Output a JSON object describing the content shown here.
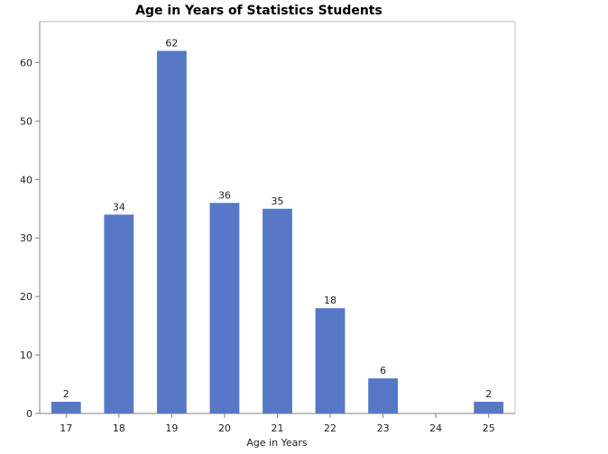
{
  "chart_data": {
    "type": "bar",
    "title": "Age in Years of Statistics Students",
    "xlabel": "Age in Years",
    "ylabel": "",
    "categories": [
      "17",
      "18",
      "19",
      "20",
      "21",
      "22",
      "23",
      "24",
      "25"
    ],
    "values": [
      2,
      34,
      62,
      36,
      35,
      18,
      6,
      0,
      2
    ],
    "data_labels": [
      "2",
      "34",
      "62",
      "36",
      "35",
      "18",
      "6",
      "",
      "2"
    ],
    "ylim": [
      0,
      67
    ],
    "yticks": [
      0,
      10,
      20,
      30,
      40,
      50,
      60
    ],
    "grid": false,
    "legend": "none",
    "bar_color": "#5778C6",
    "frame_color": "#BFBFBF"
  }
}
